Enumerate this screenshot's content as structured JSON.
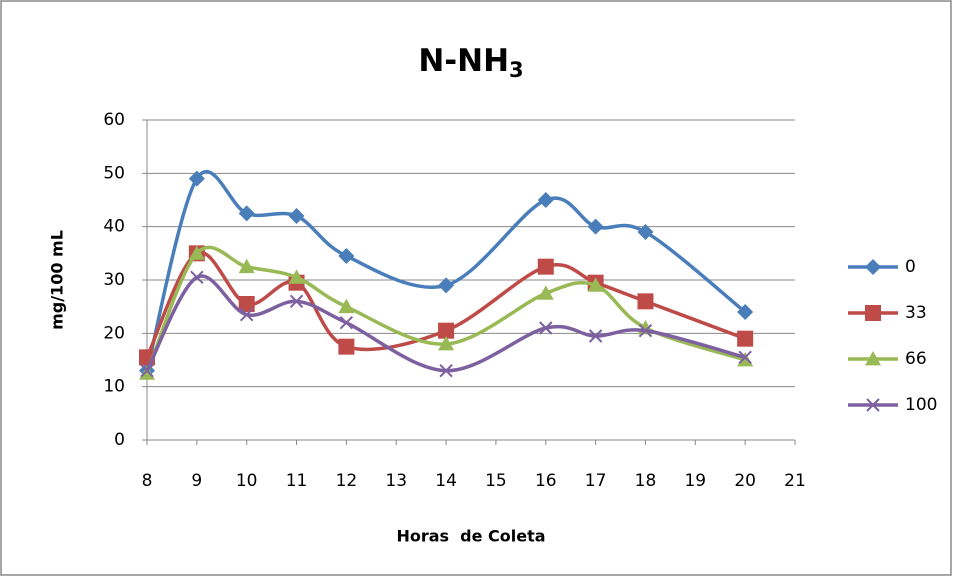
{
  "chart_data": {
    "type": "line",
    "title": "N-NH",
    "title_subscript": "3",
    "x_label": "Horas  de Coleta",
    "y_label": "mg/100 mL",
    "x": [
      8,
      9,
      10,
      11,
      12,
      14,
      16,
      17,
      18,
      20
    ],
    "series": [
      {
        "name": "0",
        "color": "#4a7ebb",
        "marker": "diamond",
        "values": [
          13,
          49,
          42.5,
          42,
          34.5,
          29,
          45,
          40,
          39,
          24
        ]
      },
      {
        "name": "33",
        "color": "#be4b48",
        "marker": "square",
        "values": [
          15.5,
          35,
          25.5,
          29.5,
          17.5,
          20.5,
          32.5,
          29.5,
          26,
          19
        ]
      },
      {
        "name": "66",
        "color": "#98b954",
        "marker": "triangle",
        "values": [
          12.5,
          35,
          32.5,
          30.5,
          25,
          18,
          27.5,
          29,
          21,
          15
        ]
      },
      {
        "name": "100",
        "color": "#7d60a0",
        "marker": "cross",
        "values": [
          13,
          30.5,
          23.5,
          26,
          22,
          13,
          21,
          19.5,
          20.5,
          15.5
        ]
      }
    ],
    "xlim": [
      8,
      21
    ],
    "xticks": [
      8,
      9,
      10,
      11,
      12,
      13,
      14,
      15,
      16,
      17,
      18,
      19,
      20,
      21
    ],
    "ylim": [
      0,
      60
    ],
    "yticks": [
      0,
      10,
      20,
      30,
      40,
      50,
      60
    ],
    "grid": true,
    "smooth": true,
    "legend": "right"
  }
}
